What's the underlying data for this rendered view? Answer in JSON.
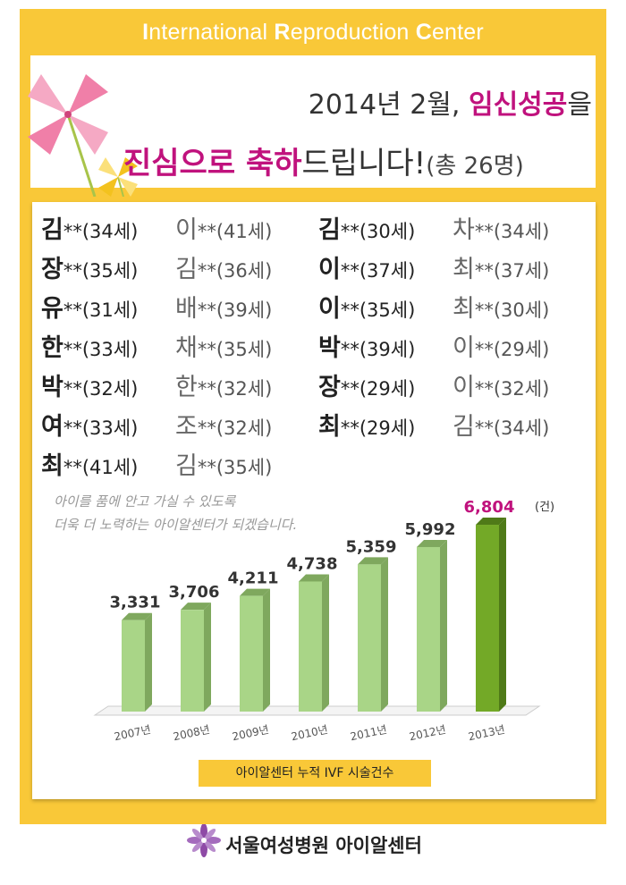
{
  "header": {
    "title_parts": [
      "I",
      "nternational ",
      "R",
      "eproduction ",
      "C",
      "enter"
    ]
  },
  "headline": {
    "line1_a": "2014년 2월, ",
    "line1_b": "임신성공",
    "line1_c": "을",
    "line2_a": "진심으로 축하",
    "line2_b": "드립니다!",
    "line2_c": "(총 26명)"
  },
  "names": [
    {
      "sur": "김",
      "rest": "**(34세)",
      "gray": false
    },
    {
      "sur": "이",
      "rest": "**(41세)",
      "gray": true
    },
    {
      "sur": "김",
      "rest": "**(30세)",
      "gray": false
    },
    {
      "sur": "차",
      "rest": "**(34세)",
      "gray": true
    },
    {
      "sur": "장",
      "rest": "**(35세)",
      "gray": false
    },
    {
      "sur": "김",
      "rest": "**(36세)",
      "gray": true
    },
    {
      "sur": "이",
      "rest": "**(37세)",
      "gray": false
    },
    {
      "sur": "최",
      "rest": "**(37세)",
      "gray": true
    },
    {
      "sur": "유",
      "rest": "**(31세)",
      "gray": false
    },
    {
      "sur": "배",
      "rest": "**(39세)",
      "gray": true
    },
    {
      "sur": "이",
      "rest": "**(35세)",
      "gray": false
    },
    {
      "sur": "최",
      "rest": "**(30세)",
      "gray": true
    },
    {
      "sur": "한",
      "rest": "**(33세)",
      "gray": false
    },
    {
      "sur": "채",
      "rest": "**(35세)",
      "gray": true
    },
    {
      "sur": "박",
      "rest": "**(39세)",
      "gray": false
    },
    {
      "sur": "이",
      "rest": "**(29세)",
      "gray": true
    },
    {
      "sur": "박",
      "rest": "**(32세)",
      "gray": false
    },
    {
      "sur": "한",
      "rest": "**(32세)",
      "gray": true
    },
    {
      "sur": "장",
      "rest": "**(29세)",
      "gray": false
    },
    {
      "sur": "이",
      "rest": "**(32세)",
      "gray": true
    },
    {
      "sur": "여",
      "rest": "**(33세)",
      "gray": false
    },
    {
      "sur": "조",
      "rest": "**(32세)",
      "gray": true
    },
    {
      "sur": "최",
      "rest": "**(29세)",
      "gray": false
    },
    {
      "sur": "김",
      "rest": "**(34세)",
      "gray": true
    },
    {
      "sur": "최",
      "rest": "**(41세)",
      "gray": false
    },
    {
      "sur": "김",
      "rest": "**(35세)",
      "gray": true
    }
  ],
  "note": {
    "line1": "아이를 품에 안고 가실 수 있도록",
    "line2": "더욱 더 노력하는 아이알센터가 되겠습니다."
  },
  "chart_data": {
    "type": "bar",
    "categories": [
      "2007년",
      "2008년",
      "2009년",
      "2010년",
      "2011년",
      "2012년",
      "2013년"
    ],
    "values": [
      3331,
      3706,
      4211,
      4738,
      5359,
      5992,
      6804
    ],
    "value_labels": [
      "3,331",
      "3,706",
      "4,211",
      "4,738",
      "5,359",
      "5,992",
      "6,804"
    ],
    "unit": "(건)",
    "title": "아이알센터 누적 IVF 시술건수",
    "highlight_index": 6,
    "colors": {
      "bar": "#a9d587",
      "bar_side": "#7fa85e",
      "highlight": "#73a927",
      "highlight_side": "#4f7a18",
      "highlight_label": "#c0127d"
    }
  },
  "footer": {
    "name": "서울여성병원 아이알센터"
  }
}
